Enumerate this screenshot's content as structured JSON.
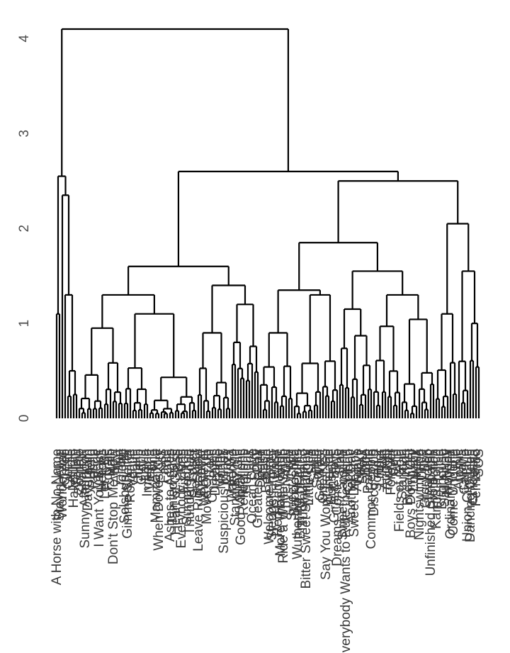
{
  "chart_data": {
    "type": "dendrogram",
    "title": "",
    "xlabel": "",
    "ylabel": "",
    "ylim": [
      0,
      4.1
    ],
    "y_ticks": [
      0,
      1,
      2,
      3,
      4
    ],
    "y_tick_labels": [
      "0",
      "1",
      "2",
      "3",
      "4"
    ],
    "grid": false,
    "legend": "none",
    "leaf_count": 150,
    "root_height": 4.1,
    "major_merge_heights": [
      4.1,
      2.6,
      2.5,
      2.3,
      2.05,
      1.85,
      1.65,
      1.6,
      1.55,
      1.4,
      1.35,
      1.3,
      1.3,
      1.2,
      1.2,
      1.15,
      1.1,
      1.05,
      1.0,
      1.0,
      0.95,
      0.9,
      0.85,
      0.8
    ],
    "leaf_labels": [
      "A Horse with No Name",
      "Stayin' Alive",
      "Wonderwall",
      "Creep",
      "Clocks",
      "Angie",
      "Hallelujah",
      "Yellow",
      "Zombie",
      "Shallow",
      "Sunny Afternoon",
      "Daydream",
      "Hello",
      "Rehab",
      "Valerie",
      "I Want You Back",
      "Heroes",
      "Let It Be",
      "Royals",
      "Rain",
      "Don't Stop Me Now",
      "Africa",
      "Hurt",
      "Jolene",
      "Solsbury Hill",
      "Gimme Shelter",
      "Roxanne",
      "Vogue",
      "Faith",
      "Jump",
      "Gloria",
      "Layla",
      "Imagine",
      "Vienna",
      "Alone",
      "Mamma Mia",
      "When Doves Cry",
      "Kiss",
      "Fame",
      "Lola",
      "Ashes to Ashes",
      "Tainted Love",
      "Heart of Glass",
      "Bad",
      "Everybody Hurts",
      "Fix You",
      "Summertime",
      "Thunder Road",
      "Loser",
      "Respect",
      "Leave Right Now",
      "Breathe",
      "Whatever",
      "Move On Up",
      "Torn",
      "Changes",
      "Dreams",
      "Time",
      "Money",
      "Suspicious Minds",
      "Crazy",
      "Hey Ya",
      "Waterloo",
      "Stand By Me",
      "My Girl",
      "Good Vibrations",
      "Reflections",
      "Holiday",
      "Iris",
      "Ocean Drive",
      "Sorry",
      "Greatest Day",
      "Desire",
      "Rush",
      "Believe",
      "Welcome Home",
      "Sledgehammer",
      "Easy",
      "Red Red Wine",
      "More Than Words",
      "Ride a White Swan",
      "Lovely Day",
      "Free",
      "Sweet Child",
      "Babooshka",
      "Wuthering Heights",
      "Brimful of Asha",
      "Tubthumping",
      "Bitter Sweet Symphony",
      "Little Lies",
      "Sing",
      "Smile",
      "Sorted",
      "Go West",
      "One Kiss",
      "Say You Won't Let Go",
      "Wannabe",
      "Sunshine",
      "Girls & Boys",
      "Dreams Come True",
      "Stay",
      "Sweet Caroline",
      "Everybody Wants to Rule the World",
      "Golden",
      "Another Day",
      "Sweet Dreams",
      "Always",
      "Lucky",
      "Shout",
      "Blue",
      "Parklife",
      "Common People",
      "Disco 2000",
      "Song 2",
      "Linger",
      "Run",
      "Angels",
      "Tonight",
      "Forever",
      "Cold",
      "Wild",
      "Fields of Gold",
      "Starman",
      "Kids",
      "Breakfast",
      "Boys Don't Cry",
      "Lullaby",
      "Walk",
      "Nightswimming",
      "Drive",
      "Glory Box",
      "Teardrop",
      "Unfinished Sympathy",
      "Protection",
      "Karma Police",
      "Lucid",
      "Birdhouse",
      "Sail Away",
      "Nobody",
      "Ordinary World",
      "Come Undone",
      "Rio",
      "Atomic",
      "Maria",
      "Call Me",
      "Union City Blue",
      "Dancing Queen",
      "Chiquitita",
      "Fernando",
      "SOS"
    ]
  }
}
